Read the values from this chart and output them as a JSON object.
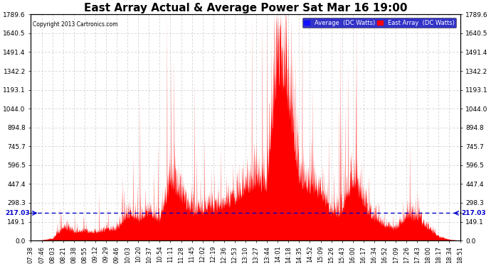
{
  "title": "East Array Actual & Average Power Sat Mar 16 19:00",
  "copyright": "Copyright 2013 Cartronics.com",
  "legend_blue": "Average  (DC Watts)",
  "legend_red": "East Array  (DC Watts)",
  "ymin": 0.0,
  "ymax": 1789.6,
  "yticks": [
    0.0,
    149.1,
    217.03,
    298.3,
    447.4,
    596.5,
    745.7,
    894.8,
    1044.0,
    1193.1,
    1342.2,
    1491.4,
    1640.5,
    1789.6
  ],
  "hline_y": 217.03,
  "background_color": "#ffffff",
  "grid_color": "#c8c8c8",
  "red_color": "#ff0000",
  "blue_color": "#0000cc",
  "title_fontsize": 11,
  "label_fontsize": 6.5,
  "figwidth": 6.9,
  "figheight": 3.75,
  "xtick_labels": [
    "07:38",
    "07:46",
    "08:03",
    "08:21",
    "08:38",
    "08:55",
    "09:12",
    "09:29",
    "09:46",
    "10:03",
    "10:20",
    "10:37",
    "10:54",
    "11:11",
    "11:28",
    "11:45",
    "12:02",
    "12:19",
    "12:36",
    "12:53",
    "13:10",
    "13:27",
    "13:44",
    "14:01",
    "14:18",
    "14:35",
    "14:52",
    "15:09",
    "15:26",
    "15:43",
    "16:00",
    "16:17",
    "16:34",
    "16:52",
    "17:09",
    "17:26",
    "17:43",
    "18:00",
    "18:17",
    "18:34",
    "18:51"
  ]
}
